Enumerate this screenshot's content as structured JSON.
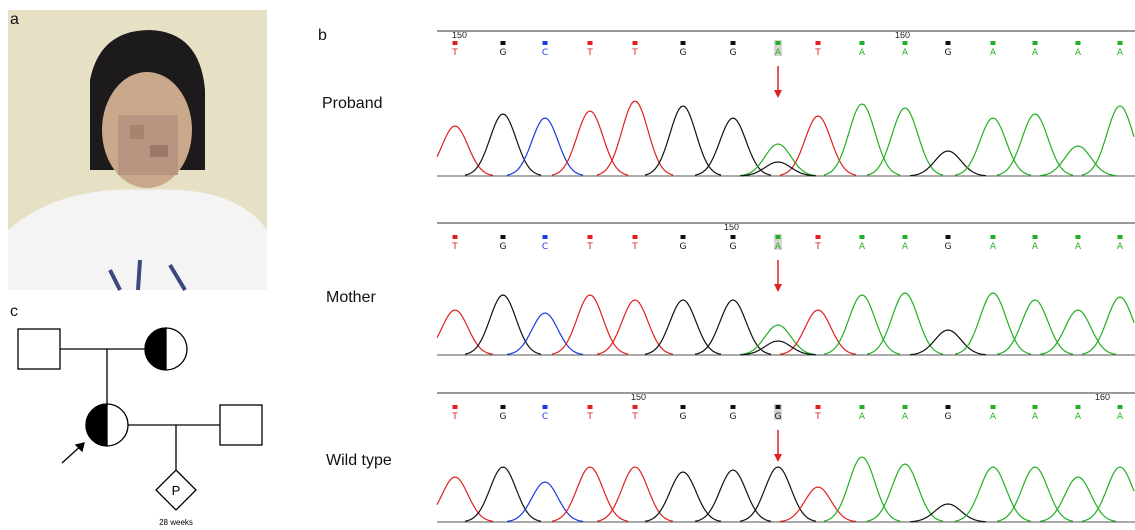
{
  "panels": {
    "a": "a",
    "b": "b",
    "c": "c"
  },
  "tracks": [
    {
      "label": "Proband",
      "positions": [
        "150",
        "160"
      ],
      "bases": [
        "T",
        "G",
        "C",
        "T",
        "T",
        "G",
        "G",
        "A",
        "T",
        "A",
        "A",
        "G",
        "A",
        "A",
        "A",
        "A"
      ]
    },
    {
      "label": "Mother",
      "positions": [
        "150"
      ],
      "bases": [
        "T",
        "G",
        "C",
        "T",
        "T",
        "G",
        "G",
        "A",
        "T",
        "A",
        "A",
        "G",
        "A",
        "A",
        "A",
        "A"
      ]
    },
    {
      "label": "Wild type",
      "positions": [
        "150",
        "160"
      ],
      "bases": [
        "T",
        "G",
        "C",
        "T",
        "T",
        "G",
        "G",
        "G",
        "T",
        "A",
        "A",
        "G",
        "A",
        "A",
        "A",
        "A"
      ]
    }
  ],
  "pedigree": {
    "proband_symbol": "P",
    "gestation": "28 weeks"
  }
}
